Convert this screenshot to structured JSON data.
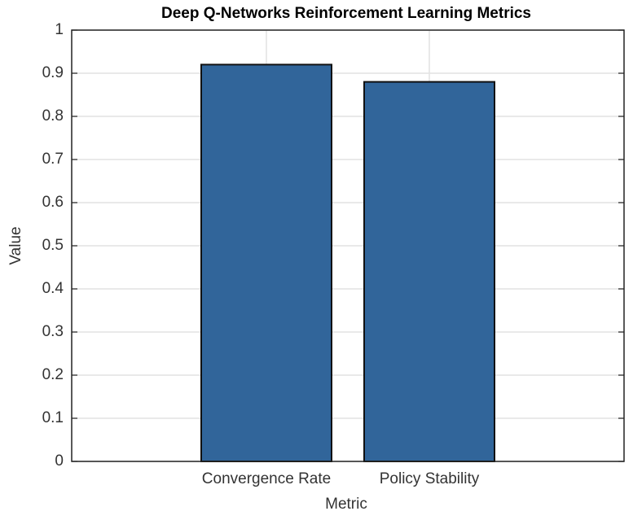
{
  "chart_data": {
    "type": "bar",
    "title": "Deep Q-Networks Reinforcement Learning Metrics",
    "x_label": "Metric",
    "y_label": "Value",
    "categories": [
      "Convergence Rate",
      "Policy Stability"
    ],
    "values": [
      0.92,
      0.88
    ],
    "color": "#31659a",
    "ylim": [
      0,
      1
    ],
    "yticks": [
      0,
      0.1,
      0.2,
      0.3,
      0.4,
      0.5,
      0.6,
      0.7,
      0.8,
      0.9,
      1
    ],
    "grid": true
  }
}
